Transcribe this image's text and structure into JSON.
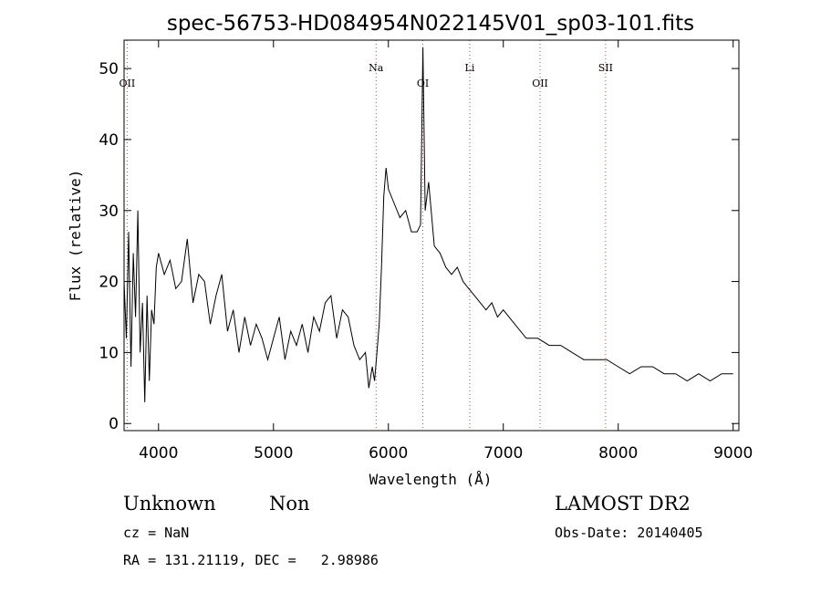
{
  "chart_data": {
    "type": "line",
    "title": "spec-56753-HD084954N022145V01_sp03-101.fits",
    "xlabel": "Wavelength (Å)",
    "ylabel": "Flux (relative)",
    "xlim": [
      3700,
      9050
    ],
    "ylim": [
      -1,
      54
    ],
    "xticks": [
      4000,
      5000,
      6000,
      7000,
      8000,
      9000
    ],
    "yticks": [
      0,
      10,
      20,
      30,
      40,
      50
    ],
    "grid": false,
    "series": [
      {
        "x": [
          3700,
          3720,
          3740,
          3760,
          3780,
          3800,
          3820,
          3840,
          3860,
          3880,
          3900,
          3920,
          3940,
          3960,
          3980,
          4000,
          4050,
          4100,
          4150,
          4200,
          4250,
          4300,
          4350,
          4400,
          4450,
          4500,
          4550,
          4600,
          4650,
          4700,
          4750,
          4800,
          4850,
          4900,
          4950,
          5000,
          5050,
          5100,
          5150,
          5200,
          5250,
          5300,
          5350,
          5400,
          5450,
          5500,
          5550,
          5600,
          5650,
          5700,
          5750,
          5800,
          5830,
          5860,
          5880,
          5900,
          5920,
          5940,
          5960,
          5980,
          6000,
          6050,
          6100,
          6150,
          6200,
          6250,
          6280,
          6300,
          6320,
          6350,
          6400,
          6450,
          6500,
          6550,
          6600,
          6650,
          6700,
          6750,
          6800,
          6850,
          6900,
          6950,
          7000,
          7100,
          7200,
          7300,
          7400,
          7500,
          7600,
          7700,
          7800,
          7900,
          8000,
          8100,
          8200,
          8300,
          8400,
          8500,
          8600,
          8700,
          8800,
          8900,
          9000
        ],
        "y": [
          20,
          12,
          27,
          8,
          24,
          15,
          30,
          10,
          17,
          3,
          18,
          6,
          16,
          14,
          22,
          24,
          21,
          23,
          19,
          20,
          26,
          17,
          21,
          20,
          14,
          18,
          21,
          13,
          16,
          10,
          15,
          11,
          14,
          12,
          9,
          12,
          15,
          9,
          13,
          11,
          14,
          10,
          15,
          13,
          17,
          18,
          12,
          16,
          15,
          11,
          9,
          10,
          5,
          8,
          6,
          10,
          14,
          22,
          32,
          36,
          33,
          31,
          29,
          30,
          27,
          27,
          28,
          53,
          30,
          34,
          25,
          24,
          22,
          21,
          22,
          20,
          19,
          18,
          17,
          16,
          17,
          15,
          16,
          14,
          12,
          12,
          11,
          11,
          10,
          9,
          9,
          9,
          8,
          7,
          8,
          8,
          7,
          7,
          6,
          7,
          6,
          7,
          7
        ]
      }
    ],
    "annotations": [
      {
        "label": "OII",
        "x": 3727
      },
      {
        "label": "Na",
        "x": 5893
      },
      {
        "label": "OI",
        "x": 6300
      },
      {
        "label": "Li",
        "x": 6708
      },
      {
        "label": "OII",
        "x": 7320
      },
      {
        "label": "SII",
        "x": 7890
      }
    ]
  },
  "info": {
    "class": "Unknown",
    "subclass": "Non",
    "survey": "LAMOST DR2",
    "cz": "cz = NaN",
    "obs_date": "Obs-Date: 20140405",
    "coords": "RA = 131.21119, DEC =   2.98986"
  }
}
